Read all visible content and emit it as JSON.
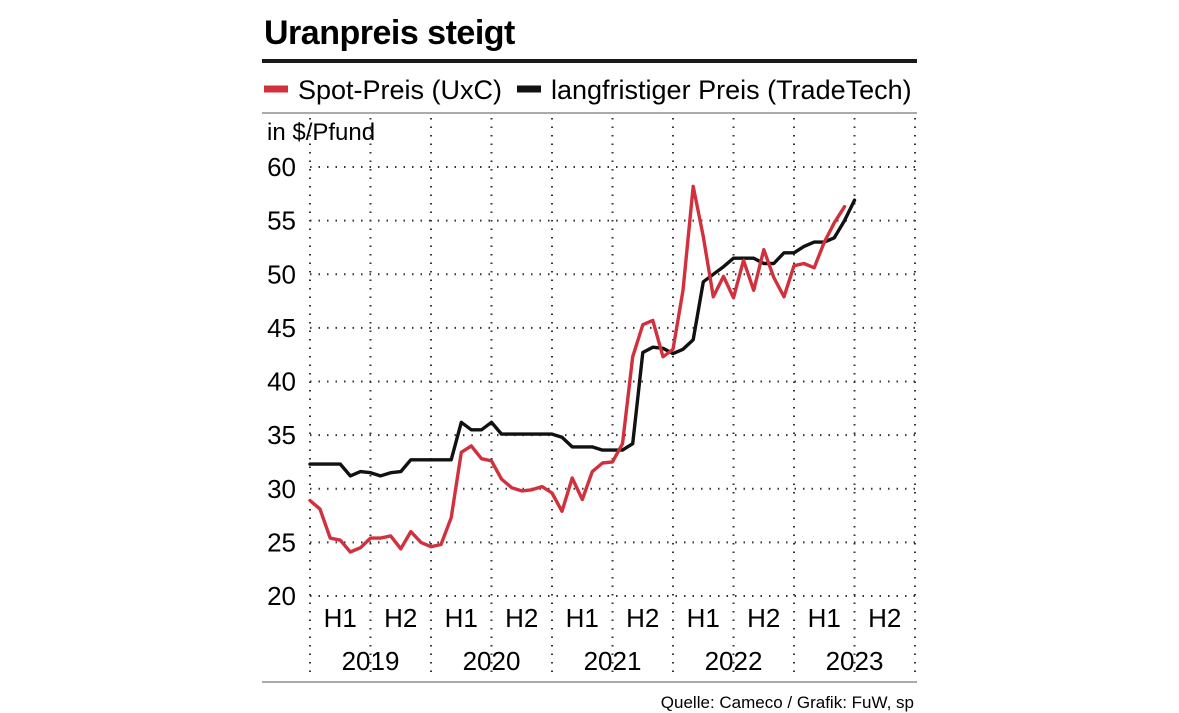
{
  "title": "Uranpreis steigt",
  "source": "Quelle: Cameco / Grafik: FuW, sp",
  "colors": {
    "spot": "#d1313d",
    "long": "#111111",
    "rule": "#1a1a1a",
    "grid": "#333333"
  },
  "chart_data": {
    "type": "line",
    "title": "Uranpreis steigt",
    "ylabel": "in $/Pfund",
    "ylim": [
      20,
      60
    ],
    "yticks": [
      20,
      25,
      30,
      35,
      40,
      45,
      50,
      55,
      60
    ],
    "xlim": [
      2019.0,
      2024.0
    ],
    "half_labels": [
      "H1",
      "H2"
    ],
    "years": [
      "2019",
      "2020",
      "2021",
      "2022",
      "2023"
    ],
    "grid": true,
    "legend_position": "top",
    "series": [
      {
        "name": "Spot-Preis (UxC)",
        "color": "#d1313d",
        "x": [
          2019.0,
          2019.083,
          2019.167,
          2019.25,
          2019.333,
          2019.417,
          2019.5,
          2019.583,
          2019.667,
          2019.75,
          2019.833,
          2019.917,
          2020.0,
          2020.083,
          2020.167,
          2020.25,
          2020.333,
          2020.417,
          2020.5,
          2020.583,
          2020.667,
          2020.75,
          2020.833,
          2020.917,
          2021.0,
          2021.083,
          2021.167,
          2021.25,
          2021.333,
          2021.417,
          2021.5,
          2021.583,
          2021.667,
          2021.75,
          2021.833,
          2021.917,
          2022.0,
          2022.083,
          2022.167,
          2022.25,
          2022.333,
          2022.417,
          2022.5,
          2022.583,
          2022.667,
          2022.75,
          2022.833,
          2022.917,
          2023.0,
          2023.083,
          2023.167,
          2023.25,
          2023.333,
          2023.417
        ],
        "y": [
          28.9,
          28.1,
          25.4,
          25.2,
          24.1,
          24.5,
          25.4,
          25.4,
          25.6,
          24.4,
          26.0,
          25.0,
          24.6,
          24.8,
          27.3,
          33.4,
          34.0,
          32.8,
          32.6,
          30.9,
          30.1,
          29.8,
          29.9,
          30.2,
          29.6,
          27.9,
          31.0,
          29.0,
          31.6,
          32.4,
          32.5,
          34.2,
          42.3,
          45.3,
          45.7,
          42.3,
          43.0,
          48.5,
          58.2,
          53.5,
          47.9,
          49.8,
          47.8,
          51.3,
          48.5,
          52.3,
          49.7,
          47.9,
          50.8,
          51.0,
          50.6,
          53.0,
          54.8,
          56.3
        ]
      },
      {
        "name": "langfristiger Preis (TradeTech)",
        "color": "#111111",
        "x": [
          2019.0,
          2019.083,
          2019.167,
          2019.25,
          2019.333,
          2019.417,
          2019.5,
          2019.583,
          2019.667,
          2019.75,
          2019.833,
          2019.917,
          2020.0,
          2020.083,
          2020.167,
          2020.25,
          2020.333,
          2020.417,
          2020.5,
          2020.583,
          2020.667,
          2020.75,
          2020.833,
          2020.917,
          2021.0,
          2021.083,
          2021.167,
          2021.25,
          2021.333,
          2021.417,
          2021.5,
          2021.583,
          2021.667,
          2021.75,
          2021.833,
          2021.917,
          2022.0,
          2022.083,
          2022.167,
          2022.25,
          2022.333,
          2022.417,
          2022.5,
          2022.583,
          2022.667,
          2022.75,
          2022.833,
          2022.917,
          2023.0,
          2023.083,
          2023.167,
          2023.25,
          2023.333,
          2023.417,
          2023.5
        ],
        "y": [
          32.3,
          32.3,
          32.3,
          32.3,
          31.2,
          31.6,
          31.5,
          31.2,
          31.5,
          31.6,
          32.7,
          32.7,
          32.7,
          32.7,
          32.7,
          36.2,
          35.5,
          35.5,
          36.2,
          35.1,
          35.1,
          35.1,
          35.1,
          35.1,
          35.1,
          34.8,
          33.9,
          33.9,
          33.9,
          33.6,
          33.6,
          33.6,
          34.2,
          42.7,
          43.2,
          43.1,
          42.6,
          43.0,
          43.9,
          49.3,
          50.0,
          50.7,
          51.5,
          51.5,
          51.5,
          51.0,
          51.0,
          52.0,
          52.0,
          52.6,
          53.0,
          53.0,
          53.4,
          55.0,
          56.9
        ]
      }
    ]
  }
}
